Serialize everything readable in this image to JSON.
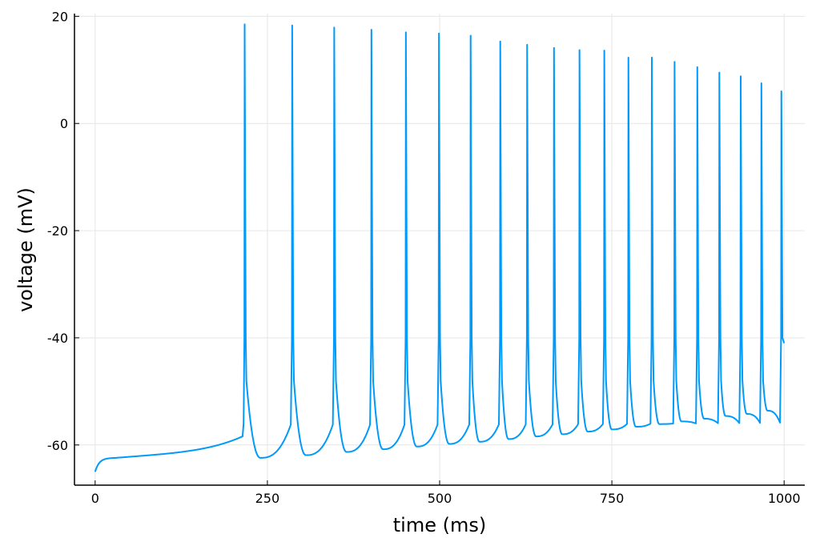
{
  "chart_data": {
    "type": "line",
    "title": "",
    "xlabel": "time (ms)",
    "ylabel": "voltage (mV)",
    "xlim": [
      -30,
      1030
    ],
    "ylim": [
      -67.5,
      20.5
    ],
    "xticks": [
      0,
      250,
      500,
      750,
      1000
    ],
    "xtick_labels": [
      "0",
      "250",
      "500",
      "750",
      "1000"
    ],
    "yticks": [
      -60,
      -40,
      -20,
      0,
      20
    ],
    "ytick_labels": [
      "-60",
      "-40",
      "-20",
      "0",
      "20"
    ],
    "grid": true,
    "legend": "none",
    "series": [
      {
        "color": "#009AFA",
        "start": [
          0,
          -65.0
        ],
        "spikes": [
          {
            "t": 217,
            "peak": 18.5
          },
          {
            "t": 286,
            "peak": 18.3
          },
          {
            "t": 347,
            "peak": 17.9
          },
          {
            "t": 401,
            "peak": 17.5
          },
          {
            "t": 451,
            "peak": 17.0
          },
          {
            "t": 499,
            "peak": 16.8
          },
          {
            "t": 545,
            "peak": 16.4
          },
          {
            "t": 588,
            "peak": 15.3
          },
          {
            "t": 627,
            "peak": 14.7
          },
          {
            "t": 666,
            "peak": 14.1
          },
          {
            "t": 703,
            "peak": 13.7
          },
          {
            "t": 739,
            "peak": 13.6
          },
          {
            "t": 774,
            "peak": 12.3
          },
          {
            "t": 808,
            "peak": 12.3
          },
          {
            "t": 841,
            "peak": 11.5
          },
          {
            "t": 874,
            "peak": 10.5
          },
          {
            "t": 906,
            "peak": 9.5
          },
          {
            "t": 937,
            "peak": 8.8
          },
          {
            "t": 967,
            "peak": 7.5
          },
          {
            "t": 996,
            "peak": 6.0
          }
        ],
        "troughs": [
          {
            "t": 240,
            "v": -62.4
          },
          {
            "t": 306,
            "v": -61.9
          },
          {
            "t": 365,
            "v": -61.3
          },
          {
            "t": 418,
            "v": -60.8
          },
          {
            "t": 467,
            "v": -60.3
          },
          {
            "t": 514,
            "v": -59.8
          },
          {
            "t": 558,
            "v": -59.4
          },
          {
            "t": 600,
            "v": -58.9
          },
          {
            "t": 640,
            "v": -58.4
          },
          {
            "t": 678,
            "v": -58.0
          },
          {
            "t": 715,
            "v": -57.5
          },
          {
            "t": 750,
            "v": -57.1
          },
          {
            "t": 785,
            "v": -56.6
          },
          {
            "t": 819,
            "v": -56.1
          },
          {
            "t": 851,
            "v": -55.6
          },
          {
            "t": 884,
            "v": -55.1
          },
          {
            "t": 915,
            "v": -54.6
          },
          {
            "t": 946,
            "v": -54.2
          },
          {
            "t": 976,
            "v": -53.6
          }
        ],
        "end": [
          1000,
          -41.0
        ]
      }
    ]
  }
}
